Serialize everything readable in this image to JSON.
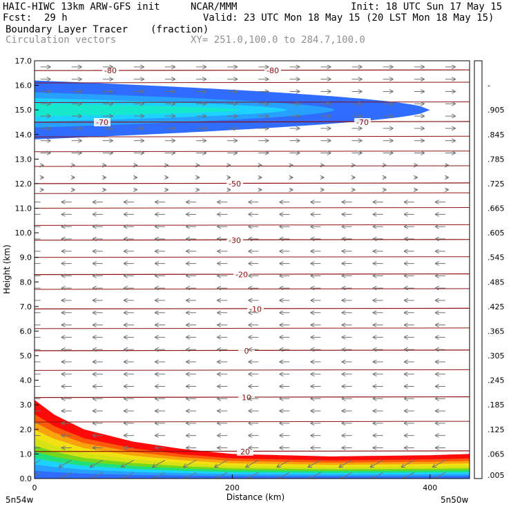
{
  "header": {
    "model": "HAIC-HIWC 13km ARW-GFS init",
    "org": "NCAR/MMM",
    "init": "Init: 18 UTC Sun 17 May 15",
    "fcst_label": "Fcst:",
    "fcst_value": "29 h",
    "valid": "Valid: 23 UTC Mon 18 May 15 (20 LST Mon 18 May 15)",
    "field": "Boundary Layer Tracer",
    "field_units": "(fraction)",
    "overlay": "Circulation vectors",
    "xy": "XY= 251.0,100.0 to 284.7,100.0"
  },
  "chart_data": {
    "type": "heatmap",
    "ylabel": "Height (km)",
    "xlabel": "Distance (km)",
    "y_ticks": [
      "0.0",
      "1.0",
      "2.0",
      "3.0",
      "4.0",
      "5.0",
      "6.0",
      "7.0",
      "8.0",
      "9.0",
      "10.0",
      "11.0",
      "12.0",
      "13.0",
      "14.0",
      "15.0",
      "16.0",
      "17.0"
    ],
    "ylim": [
      0,
      17
    ],
    "x_ticks": [
      "0",
      "200",
      "400"
    ],
    "xlim": [
      0,
      440
    ],
    "x_left_label": "5n54w",
    "x_right_label": "5n50w",
    "colorbar": {
      "labels": [
        ".005",
        ".065",
        ".125",
        ".185",
        ".245",
        ".305",
        ".365",
        ".425",
        ".485",
        ".545",
        ".605",
        ".665",
        ".725",
        ".785",
        ".845",
        ".905",
        "-"
      ],
      "colors": [
        "#ffffff",
        "#2f6cff",
        "#27a0ff",
        "#1ed2ff",
        "#16e8cc",
        "#20e07c",
        "#3ad832",
        "#74d81e",
        "#a8dc18",
        "#d6e214",
        "#f2e012",
        "#f6c410",
        "#f8a20e",
        "#fa800c",
        "#fb5a0a",
        "#fc3208",
        "#ff0a0a"
      ]
    },
    "temperature_contours": [
      {
        "value": -80,
        "height": 16.6,
        "label": "-80"
      },
      {
        "value": -70,
        "height": 14.5,
        "label": "-70"
      },
      {
        "value": -50,
        "height": 12.0,
        "label": "-50"
      },
      {
        "value": -30,
        "height": 9.7,
        "label": "-30"
      },
      {
        "value": -20,
        "height": 8.3,
        "label": "-20"
      },
      {
        "value": -10,
        "height": 6.9,
        "label": "-10"
      },
      {
        "value": 0,
        "height": 5.2,
        "label": "0"
      },
      {
        "value": 10,
        "height": 3.3,
        "label": "10"
      },
      {
        "value": 20,
        "height": 1.1,
        "label": "20"
      }
    ],
    "upper_plume": {
      "base_km": 13.8,
      "top_km": 16.2,
      "end_x_km": 400
    },
    "boundary_layer_depth_km": [
      [
        0,
        3.2
      ],
      [
        20,
        2.6
      ],
      [
        50,
        2.0
      ],
      [
        100,
        1.5
      ],
      [
        150,
        1.2
      ],
      [
        200,
        1.0
      ],
      [
        300,
        0.9
      ],
      [
        400,
        0.95
      ],
      [
        440,
        1.0
      ]
    ]
  }
}
